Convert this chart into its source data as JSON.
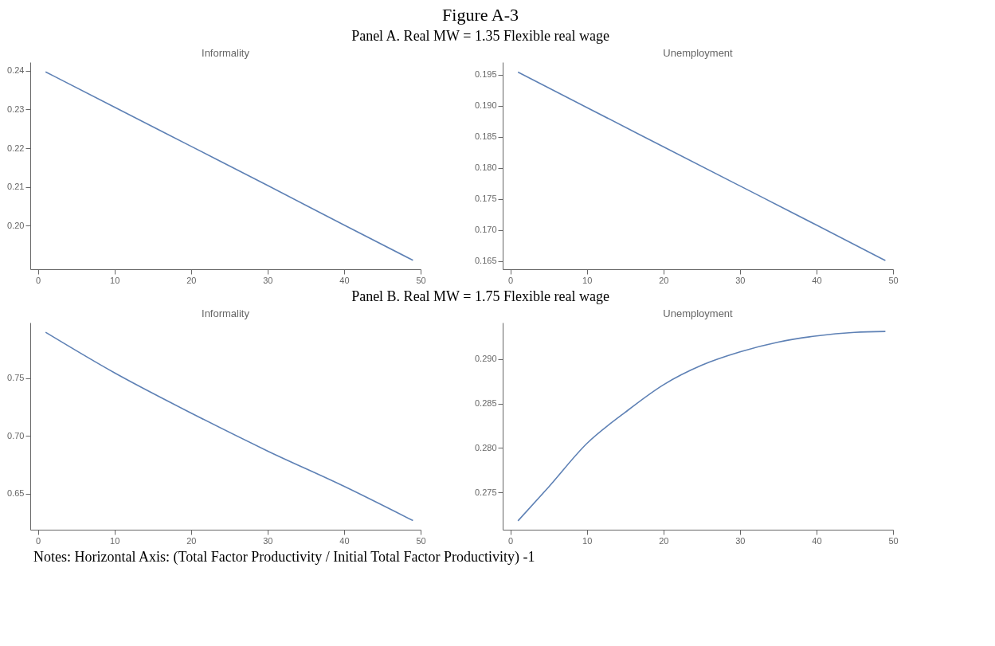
{
  "chart_data": [
    {
      "type": "line",
      "title": "Informality",
      "annotations": [
        "Figure A-3",
        "Panel A. Real MW = 1.35 Flexible real wage"
      ],
      "x": [
        1,
        10,
        20,
        30,
        40,
        49
      ],
      "xlim": [
        -1,
        50
      ],
      "xticks": [
        0,
        10,
        20,
        30,
        40,
        50
      ],
      "ylim": [
        0.1888,
        0.2422
      ],
      "yticks": [
        {
          "value": 0.2,
          "label": "0.20"
        },
        0.21,
        0.22,
        0.23,
        0.24
      ],
      "grid": false,
      "legend": false,
      "series": [
        {
          "color": "#5e81b5",
          "values": [
            0.2397,
            0.2306,
            0.2205,
            0.2104,
            0.2002,
            0.1911
          ]
        }
      ]
    },
    {
      "type": "line",
      "title": "Unemployment",
      "x": [
        1,
        10,
        20,
        30,
        40,
        49
      ],
      "xlim": [
        -1,
        50
      ],
      "xticks": [
        0,
        10,
        20,
        30,
        40,
        50
      ],
      "ylim": [
        0.1637,
        0.197
      ],
      "yticks": [
        {
          "value": 0.165,
          "label": "0.165"
        },
        {
          "value": 0.17,
          "label": "0.170"
        },
        {
          "value": 0.175,
          "label": "0.175"
        },
        {
          "value": 0.18,
          "label": "0.180"
        },
        {
          "value": 0.185,
          "label": "0.185"
        },
        {
          "value": 0.19,
          "label": "0.190"
        },
        {
          "value": 0.195,
          "label": "0.195"
        }
      ],
      "grid": false,
      "legend": false,
      "series": [
        {
          "color": "#5e81b5",
          "values": [
            0.1954,
            0.1897,
            0.1834,
            0.1771,
            0.1708,
            0.1651
          ]
        }
      ]
    },
    {
      "type": "line",
      "title": "Informality",
      "annotations": [
        "Panel B. Real MW = 1.75 Flexible real wage"
      ],
      "x": [
        1,
        10,
        20,
        30,
        40,
        49
      ],
      "xlim": [
        -1,
        50
      ],
      "xticks": [
        0,
        10,
        20,
        30,
        40,
        50
      ],
      "ylim": [
        0.6188,
        0.7982
      ],
      "yticks": [
        0.65,
        {
          "value": 0.7,
          "label": "0.70"
        },
        0.75
      ],
      "grid": false,
      "legend": false,
      "series": [
        {
          "color": "#5e81b5",
          "values": [
            0.7898,
            0.7547,
            0.7199,
            0.687,
            0.6564,
            0.6267
          ]
        }
      ]
    },
    {
      "type": "line",
      "title": "Unemployment",
      "annotations": [
        "Notes: Horizontal Axis: (Total Factor Productivity / Initial Total Factor Productivity) -1"
      ],
      "x": [
        1,
        5,
        10,
        15,
        20,
        25,
        30,
        35,
        40,
        45,
        49
      ],
      "xlim": [
        -1,
        50
      ],
      "xticks": [
        0,
        10,
        20,
        30,
        40,
        50
      ],
      "ylim": [
        0.2708,
        0.2941
      ],
      "yticks": [
        0.275,
        {
          "value": 0.28,
          "label": "0.280"
        },
        0.285,
        {
          "value": 0.29,
          "label": "0.290"
        }
      ],
      "grid": false,
      "legend": false,
      "series": [
        {
          "color": "#5e81b5",
          "values": [
            0.2718,
            0.2756,
            0.2805,
            0.284,
            0.2871,
            0.2893,
            0.2908,
            0.2919,
            0.2926,
            0.293,
            0.2931
          ]
        }
      ]
    }
  ]
}
